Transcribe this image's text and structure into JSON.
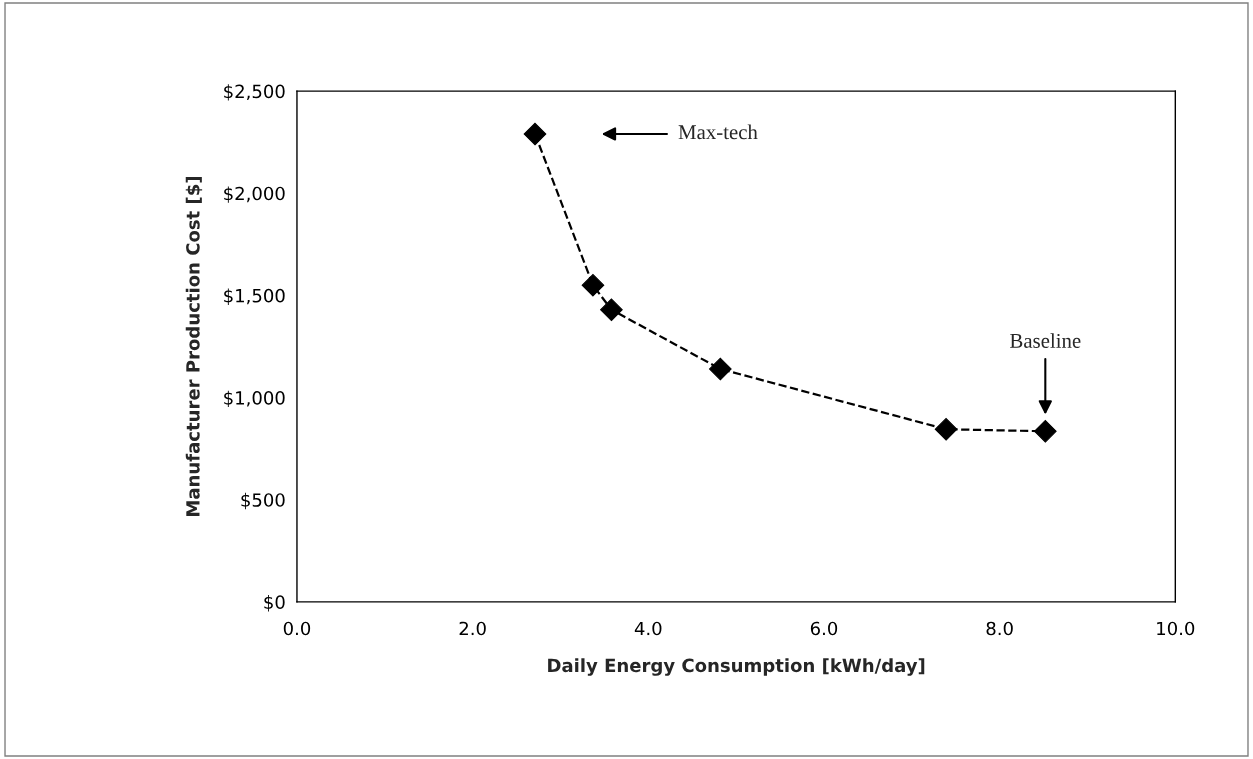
{
  "chart_data": {
    "type": "line",
    "xlabel": "Daily Energy Consumption [kWh/day]",
    "ylabel": "Manufacturer Production Cost [$]",
    "series": [
      {
        "color": "#000000",
        "x": [
          2.71,
          3.37,
          3.58,
          4.82,
          7.39,
          8.52
        ],
        "values": [
          2290,
          1550,
          1430,
          1140,
          845,
          835
        ]
      }
    ],
    "marker": "diamond",
    "line_style": "dashed",
    "grid": false,
    "legend": false,
    "xlim": [
      0,
      10
    ],
    "xticks": [
      {
        "value": 0,
        "label": "0.0"
      },
      {
        "value": 2,
        "label": "2.0"
      },
      {
        "value": 4,
        "label": "4.0"
      },
      {
        "value": 6,
        "label": "6.0"
      },
      {
        "value": 8,
        "label": "8.0"
      },
      {
        "value": 10,
        "label": "10.0"
      }
    ],
    "ylim": [
      0,
      2500
    ],
    "yticks": [
      {
        "value": 0,
        "label": "$0"
      },
      {
        "value": 500,
        "label": "$500"
      },
      {
        "value": 1000,
        "label": "$1,000"
      },
      {
        "value": 1500,
        "label": "$1,500"
      },
      {
        "value": 2000,
        "label": "$2,000"
      },
      {
        "value": 2500,
        "label": "$2,500"
      }
    ],
    "annotations": [
      "Max-tech",
      "Baseline"
    ]
  }
}
